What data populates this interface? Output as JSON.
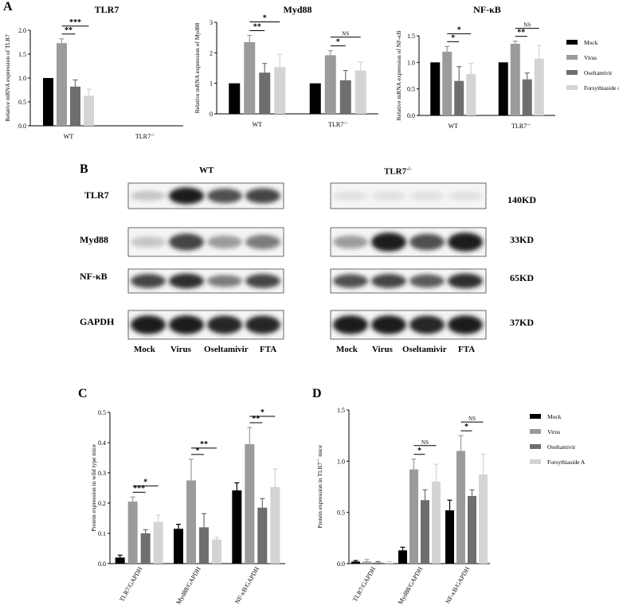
{
  "panels": {
    "A": "A",
    "B": "B",
    "C": "C",
    "D": "D"
  },
  "colors": {
    "mock": "#000000",
    "virus": "#9b9b9b",
    "oseltamivir": "#6e6e6e",
    "fta": "#d4d4d4"
  },
  "legend": [
    "Mock",
    "Virus",
    "Oseltamivir",
    "Forsythiaside A"
  ],
  "panelB": {
    "group_wt": "WT",
    "group_ko": "TLR7",
    "group_ko_sup": "-/-",
    "proteins": [
      "TLR7",
      "Myd88",
      "NF-κB",
      "GAPDH"
    ],
    "kd": [
      "140KD",
      "33KD",
      "65KD",
      "37KD"
    ],
    "lanes": [
      "Mock",
      "Virus",
      "Oseltamivir",
      "FTA"
    ]
  },
  "chart_data": [
    {
      "type": "bar",
      "panel": "A",
      "title": "TLR7",
      "ylabel": "Relative mRNA expression of TLR7",
      "ylim": [
        0,
        2.0
      ],
      "yticks": [
        "0.0",
        "0.5",
        "1.0",
        "1.5",
        "2.0"
      ],
      "categories": [
        "WT",
        "TLR7"
      ],
      "category_sup": [
        "",
        "-/-"
      ],
      "series": [
        {
          "name": "Mock",
          "values": [
            1.0,
            null
          ],
          "err": [
            0.0,
            null
          ]
        },
        {
          "name": "Virus",
          "values": [
            1.73,
            null
          ],
          "err": [
            0.09,
            null
          ]
        },
        {
          "name": "Oseltamivir",
          "values": [
            0.82,
            null
          ],
          "err": [
            0.14,
            null
          ]
        },
        {
          "name": "Forsythiaside A",
          "values": [
            0.63,
            null
          ],
          "err": [
            0.14,
            null
          ]
        }
      ],
      "annotations": [
        {
          "group": 0,
          "from": 1,
          "to": 2,
          "label": "**"
        },
        {
          "group": 0,
          "from": 1,
          "to": 3,
          "label": "***"
        }
      ]
    },
    {
      "type": "bar",
      "panel": "A",
      "title": "Myd88",
      "ylabel": "Relative mRNA expression of Myd88",
      "ylim": [
        0,
        3
      ],
      "yticks": [
        "0",
        "1",
        "2",
        "3"
      ],
      "categories": [
        "WT",
        "TLR7"
      ],
      "category_sup": [
        "",
        "-/-"
      ],
      "series": [
        {
          "name": "Mock",
          "values": [
            1.0,
            1.0
          ],
          "err": [
            0,
            0
          ]
        },
        {
          "name": "Virus",
          "values": [
            2.35,
            1.92
          ],
          "err": [
            0.22,
            0.15
          ]
        },
        {
          "name": "Oseltamivir",
          "values": [
            1.35,
            1.1
          ],
          "err": [
            0.3,
            0.32
          ]
        },
        {
          "name": "Forsythiaside A",
          "values": [
            1.53,
            1.42
          ],
          "err": [
            0.42,
            0.28
          ]
        }
      ],
      "annotations": [
        {
          "group": 0,
          "from": 1,
          "to": 2,
          "label": "**"
        },
        {
          "group": 0,
          "from": 1,
          "to": 3,
          "label": "*"
        },
        {
          "group": 1,
          "from": 1,
          "to": 2,
          "label": "*"
        },
        {
          "group": 1,
          "from": 1,
          "to": 3,
          "label": "NS"
        }
      ]
    },
    {
      "type": "bar",
      "panel": "A",
      "title": "NF-κB",
      "ylabel": "Relative mRNA expression of NF-κB",
      "ylim": [
        0,
        1.5
      ],
      "yticks": [
        "0.0",
        "0.5",
        "1.0",
        "1.5"
      ],
      "categories": [
        "WT",
        "TLR7"
      ],
      "category_sup": [
        "",
        "-/-"
      ],
      "series": [
        {
          "name": "Mock",
          "values": [
            1.0,
            1.0
          ],
          "err": [
            0,
            0
          ]
        },
        {
          "name": "Virus",
          "values": [
            1.2,
            1.35
          ],
          "err": [
            0.1,
            0.05
          ]
        },
        {
          "name": "Oseltamivir",
          "values": [
            0.65,
            0.68
          ],
          "err": [
            0.27,
            0.12
          ]
        },
        {
          "name": "Forsythiaside A",
          "values": [
            0.78,
            1.07
          ],
          "err": [
            0.2,
            0.25
          ]
        }
      ],
      "annotations": [
        {
          "group": 0,
          "from": 1,
          "to": 2,
          "label": "*"
        },
        {
          "group": 0,
          "from": 1,
          "to": 3,
          "label": "*"
        },
        {
          "group": 1,
          "from": 1,
          "to": 2,
          "label": "**"
        },
        {
          "group": 1,
          "from": 1,
          "to": 3,
          "label": "NS"
        }
      ]
    },
    {
      "type": "bar",
      "panel": "C",
      "ylabel": "Protein expression in wild type mice",
      "ylim": [
        0,
        0.5
      ],
      "yticks": [
        "0.0",
        "0.1",
        "0.2",
        "0.3",
        "0.4",
        "0.5"
      ],
      "categories": [
        "TLR7/GAPDH",
        "Myd88/GAPDH",
        "NF-κB/GAPDH"
      ],
      "series": [
        {
          "name": "Mock",
          "values": [
            0.02,
            0.115,
            0.242
          ],
          "err": [
            0.008,
            0.015,
            0.025
          ]
        },
        {
          "name": "Virus",
          "values": [
            0.205,
            0.275,
            0.395
          ],
          "err": [
            0.015,
            0.07,
            0.055
          ]
        },
        {
          "name": "Oseltamivir",
          "values": [
            0.1,
            0.12,
            0.185
          ],
          "err": [
            0.012,
            0.045,
            0.03
          ]
        },
        {
          "name": "Forsythiaside A",
          "values": [
            0.138,
            0.08,
            0.253
          ],
          "err": [
            0.022,
            0.007,
            0.06
          ]
        }
      ],
      "annotations": [
        {
          "group": 0,
          "from": 1,
          "to": 2,
          "label": "***"
        },
        {
          "group": 0,
          "from": 1,
          "to": 3,
          "label": "*"
        },
        {
          "group": 1,
          "from": 1,
          "to": 2,
          "label": "*"
        },
        {
          "group": 1,
          "from": 1,
          "to": 3,
          "label": "**"
        },
        {
          "group": 2,
          "from": 1,
          "to": 2,
          "label": "**"
        },
        {
          "group": 2,
          "from": 1,
          "to": 3,
          "label": "*"
        }
      ]
    },
    {
      "type": "bar",
      "panel": "D",
      "ylabel": "Protein expression in TLR7",
      "ylabel_sup": "-/-",
      "ylabel_tail": " mice",
      "ylim": [
        0,
        1.5
      ],
      "yticks": [
        "0.0",
        "0.5",
        "1.0",
        "1.5"
      ],
      "categories": [
        "TLR7/GAPDH",
        "Myd88/GAPDH",
        "NF-κB/GAPDH"
      ],
      "series": [
        {
          "name": "Mock",
          "values": [
            0.02,
            0.13,
            0.52
          ],
          "err": [
            0.01,
            0.03,
            0.1
          ]
        },
        {
          "name": "Virus",
          "values": [
            0.02,
            0.92,
            1.1
          ],
          "err": [
            0.02,
            0.1,
            0.15
          ]
        },
        {
          "name": "Oseltamivir",
          "values": [
            0.01,
            0.62,
            0.66
          ],
          "err": [
            0.01,
            0.1,
            0.06
          ]
        },
        {
          "name": "Forsythiaside A",
          "values": [
            0.01,
            0.8,
            0.87
          ],
          "err": [
            0.01,
            0.17,
            0.2
          ]
        }
      ],
      "annotations": [
        {
          "group": 1,
          "from": 1,
          "to": 2,
          "label": "*"
        },
        {
          "group": 1,
          "from": 1,
          "to": 3,
          "label": "NS"
        },
        {
          "group": 2,
          "from": 1,
          "to": 2,
          "label": "*"
        },
        {
          "group": 2,
          "from": 1,
          "to": 3,
          "label": "NS"
        }
      ]
    }
  ]
}
